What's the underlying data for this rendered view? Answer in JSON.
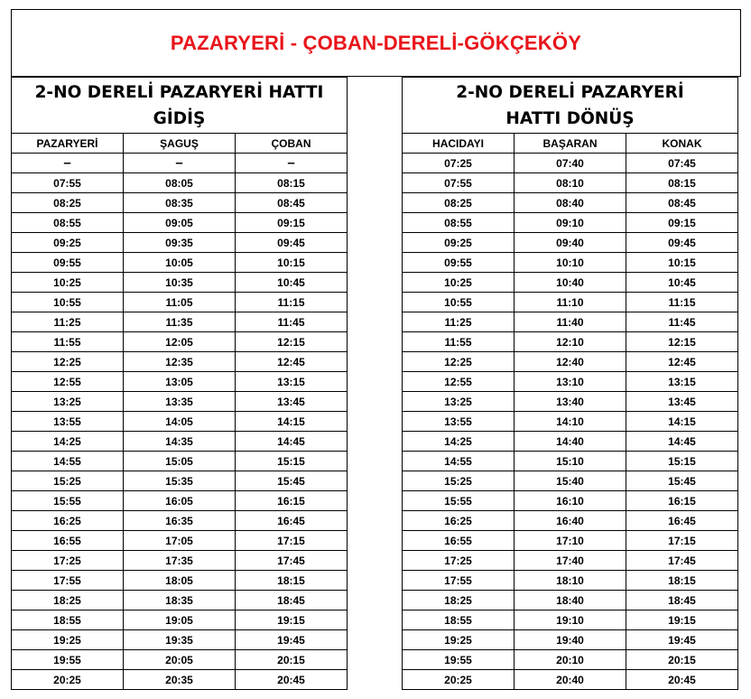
{
  "title": "PAZARYERİ - ÇOBAN-DERELİ-GÖKÇEKÖY",
  "outbound": {
    "heading": "2-NO DERELİ PAZARYERİ HATTI GİDİŞ",
    "columns": [
      "PAZARYERİ",
      "ŞAGUŞ",
      "ÇOBAN"
    ],
    "rows": [
      [
        "–",
        "–",
        "–"
      ],
      [
        "07:55",
        "08:05",
        "08:15"
      ],
      [
        "08:25",
        "08:35",
        "08:45"
      ],
      [
        "08:55",
        "09:05",
        "09:15"
      ],
      [
        "09:25",
        "09:35",
        "09:45"
      ],
      [
        "09:55",
        "10:05",
        "10:15"
      ],
      [
        "10:25",
        "10:35",
        "10:45"
      ],
      [
        "10:55",
        "11:05",
        "11:15"
      ],
      [
        "11:25",
        "11:35",
        "11:45"
      ],
      [
        "11:55",
        "12:05",
        "12:15"
      ],
      [
        "12:25",
        "12:35",
        "12:45"
      ],
      [
        "12:55",
        "13:05",
        "13:15"
      ],
      [
        "13:25",
        "13:35",
        "13:45"
      ],
      [
        "13:55",
        "14:05",
        "14:15"
      ],
      [
        "14:25",
        "14:35",
        "14:45"
      ],
      [
        "14:55",
        "15:05",
        "15:15"
      ],
      [
        "15:25",
        "15:35",
        "15:45"
      ],
      [
        "15:55",
        "16:05",
        "16:15"
      ],
      [
        "16:25",
        "16:35",
        "16:45"
      ],
      [
        "16:55",
        "17:05",
        "17:15"
      ],
      [
        "17:25",
        "17:35",
        "17:45"
      ],
      [
        "17:55",
        "18:05",
        "18:15"
      ],
      [
        "18:25",
        "18:35",
        "18:45"
      ],
      [
        "18:55",
        "19:05",
        "19:15"
      ],
      [
        "19:25",
        "19:35",
        "19:45"
      ],
      [
        "19:55",
        "20:05",
        "20:15"
      ],
      [
        "20:25",
        "20:35",
        "20:45"
      ]
    ]
  },
  "return": {
    "heading": "2-NO DERELİ PAZARYERİ HATTI DÖNÜŞ",
    "columns": [
      "HACIDAYI",
      "BAŞARAN",
      "KONAK"
    ],
    "rows": [
      [
        "07:25",
        "07:40",
        "07:45"
      ],
      [
        "07:55",
        "08:10",
        "08:15"
      ],
      [
        "08:25",
        "08:40",
        "08:45"
      ],
      [
        "08:55",
        "09:10",
        "09:15"
      ],
      [
        "09:25",
        "09:40",
        "09:45"
      ],
      [
        "09:55",
        "10:10",
        "10:15"
      ],
      [
        "10:25",
        "10:40",
        "10:45"
      ],
      [
        "10:55",
        "11:10",
        "11:15"
      ],
      [
        "11:25",
        "11:40",
        "11:45"
      ],
      [
        "11:55",
        "12:10",
        "12:15"
      ],
      [
        "12:25",
        "12:40",
        "12:45"
      ],
      [
        "12:55",
        "13:10",
        "13:15"
      ],
      [
        "13:25",
        "13:40",
        "13:45"
      ],
      [
        "13:55",
        "14:10",
        "14:15"
      ],
      [
        "14:25",
        "14:40",
        "14:45"
      ],
      [
        "14:55",
        "15:10",
        "15:15"
      ],
      [
        "15:25",
        "15:40",
        "15:45"
      ],
      [
        "15:55",
        "16:10",
        "16:15"
      ],
      [
        "16:25",
        "16:40",
        "16:45"
      ],
      [
        "16:55",
        "17:10",
        "17:15"
      ],
      [
        "17:25",
        "17:40",
        "17:45"
      ],
      [
        "17:55",
        "18:10",
        "18:15"
      ],
      [
        "18:25",
        "18:40",
        "18:45"
      ],
      [
        "18:55",
        "19:10",
        "19:15"
      ],
      [
        "19:25",
        "19:40",
        "19:45"
      ],
      [
        "19:55",
        "20:10",
        "20:15"
      ],
      [
        "20:25",
        "20:40",
        "20:45"
      ]
    ]
  }
}
